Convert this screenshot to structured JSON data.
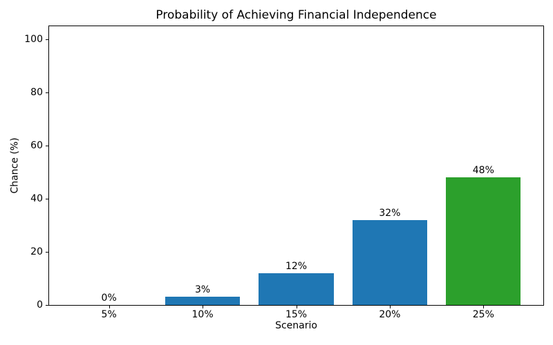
{
  "chart_data": {
    "type": "bar",
    "title": "Probability of Achieving Financial Independence",
    "xlabel": "Scenario",
    "ylabel": "Chance (%)",
    "categories": [
      "5%",
      "10%",
      "15%",
      "20%",
      "25%"
    ],
    "values": [
      0,
      3,
      12,
      32,
      48
    ],
    "bar_labels": [
      "0%",
      "3%",
      "12%",
      "32%",
      "48%"
    ],
    "bar_colors": [
      "#1f77b4",
      "#1f77b4",
      "#1f77b4",
      "#1f77b4",
      "#2ca02c"
    ],
    "ylim": [
      0,
      105
    ],
    "yticks": [
      0,
      20,
      40,
      60,
      80,
      100
    ],
    "xlim": [
      -0.64,
      4.64
    ],
    "bar_width_ratio": 0.8,
    "grid": false,
    "legend": false,
    "background": "#ffffff",
    "text_color": "#000000",
    "spine_color": "#000000"
  }
}
